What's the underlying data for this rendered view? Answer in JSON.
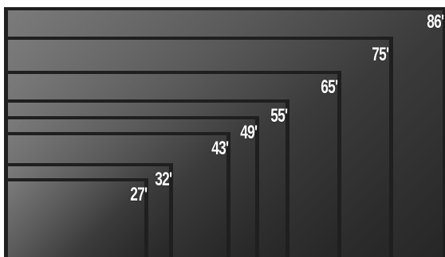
{
  "sizes": [
    {
      "id": "86",
      "label": "86'"
    },
    {
      "id": "75",
      "label": "75'"
    },
    {
      "id": "65",
      "label": "65'"
    },
    {
      "id": "55",
      "label": "55'"
    },
    {
      "id": "49",
      "label": "49'"
    },
    {
      "id": "43",
      "label": "43'"
    },
    {
      "id": "32",
      "label": "32'"
    },
    {
      "id": "27",
      "label": "27'"
    }
  ]
}
